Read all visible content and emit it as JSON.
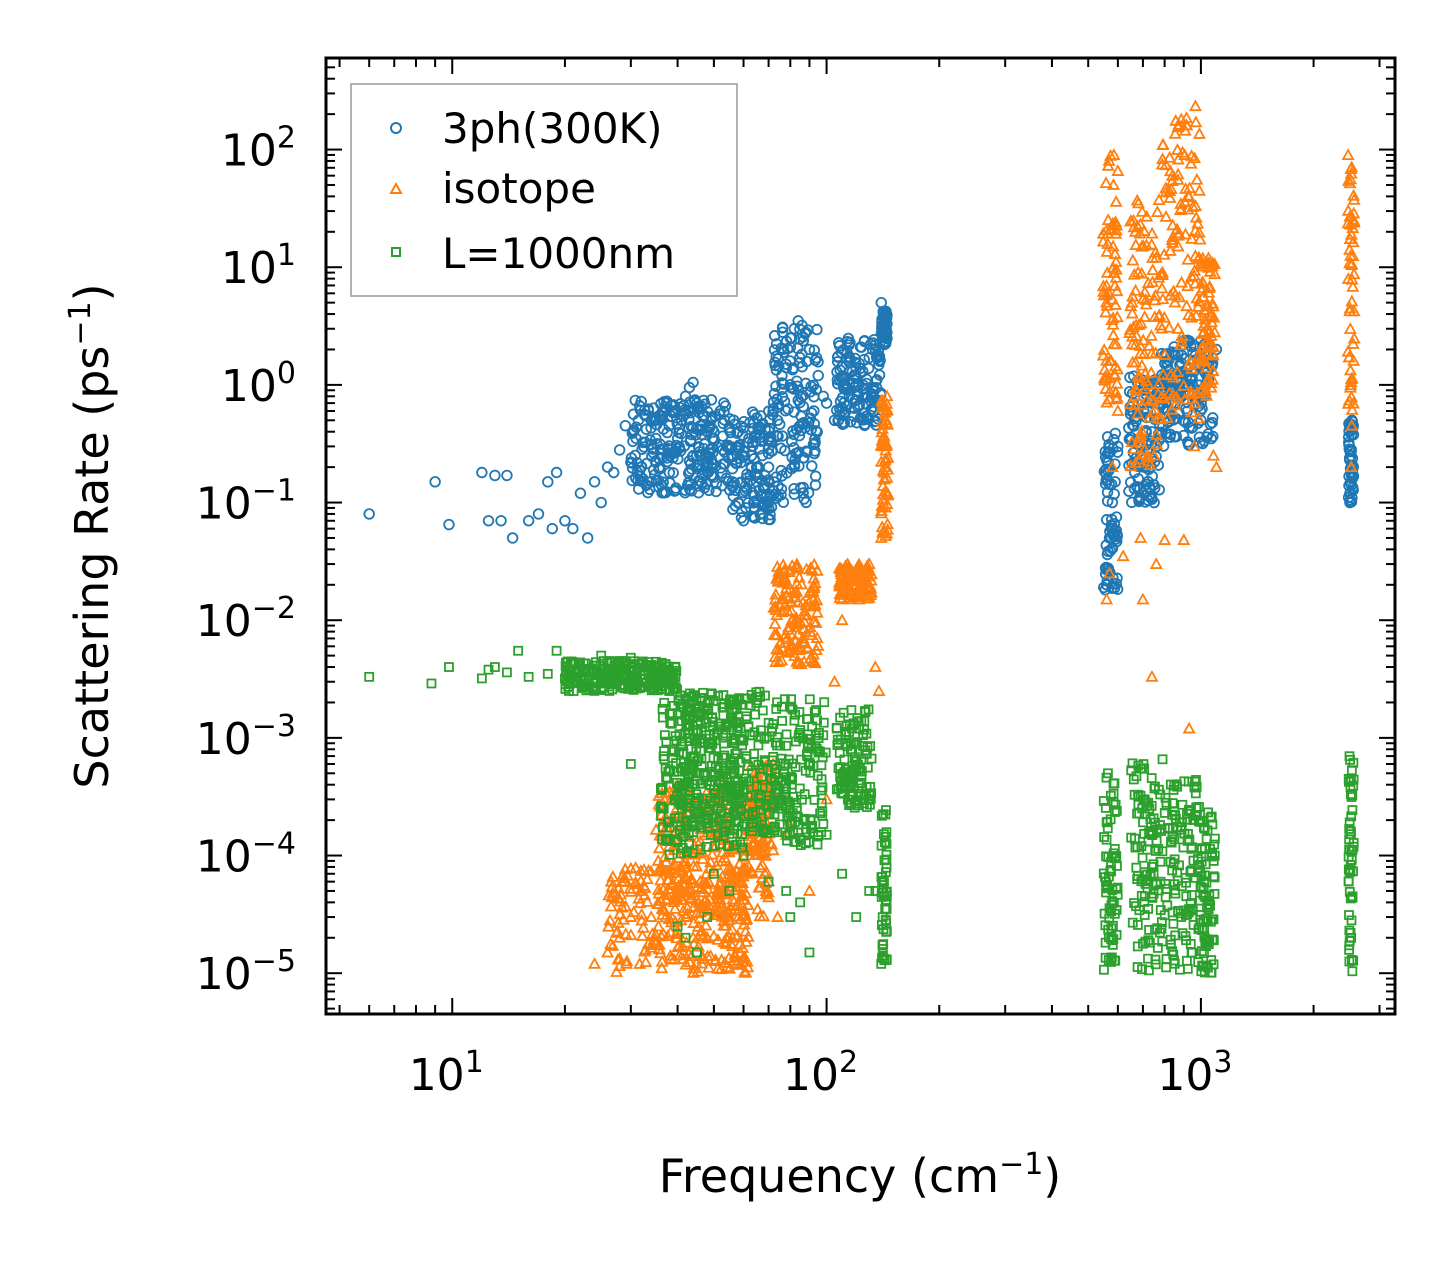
{
  "chart_data": {
    "type": "scatter",
    "xscale": "log",
    "yscale": "log",
    "xlim": [
      4.6,
      3300
    ],
    "ylim": [
      4.5e-06,
      600
    ],
    "xlabel": "Frequency (cm",
    "xlabel_sup": "−1",
    "xlabel_end": ")",
    "ylabel": "Scattering Rate (ps",
    "ylabel_sup": "−1",
    "ylabel_end": ")",
    "xticks": [
      {
        "value": 10,
        "base": "10",
        "exp": "1"
      },
      {
        "value": 100,
        "base": "10",
        "exp": "2"
      },
      {
        "value": 1000,
        "base": "10",
        "exp": "3"
      }
    ],
    "yticks": [
      {
        "value": 1e-05,
        "base": "10",
        "exp": "−5"
      },
      {
        "value": 0.0001,
        "base": "10",
        "exp": "−4"
      },
      {
        "value": 0.001,
        "base": "10",
        "exp": "−3"
      },
      {
        "value": 0.01,
        "base": "10",
        "exp": "−2"
      },
      {
        "value": 0.1,
        "base": "10",
        "exp": "−1"
      },
      {
        "value": 1,
        "base": "10",
        "exp": "0"
      },
      {
        "value": 10,
        "base": "10",
        "exp": "1"
      },
      {
        "value": 100,
        "base": "10",
        "exp": "2"
      }
    ],
    "legend_position": "top-left",
    "series": [
      {
        "name": "3ph(300K)",
        "marker": "circle",
        "color": "#1f77b4",
        "points": [
          [
            6,
            0.08
          ],
          [
            9,
            0.15
          ],
          [
            9.8,
            0.065
          ],
          [
            12,
            0.18
          ],
          [
            12.5,
            0.07
          ],
          [
            13,
            0.17
          ],
          [
            13.5,
            0.07
          ],
          [
            14,
            0.17
          ],
          [
            14.5,
            0.05
          ],
          [
            16,
            0.07
          ],
          [
            17,
            0.08
          ],
          [
            18,
            0.15
          ],
          [
            18.5,
            0.06
          ],
          [
            19,
            0.18
          ],
          [
            20,
            0.07
          ],
          [
            21,
            0.06
          ],
          [
            22,
            0.12
          ],
          [
            23,
            0.05
          ],
          [
            24,
            0.15
          ],
          [
            25,
            0.1
          ],
          [
            26,
            0.2
          ],
          [
            27,
            0.18
          ],
          [
            28,
            0.28
          ],
          [
            29,
            0.45
          ],
          [
            30,
            0.22
          ],
          [
            31,
            0.35
          ],
          [
            32,
            0.2
          ],
          [
            33,
            0.42
          ],
          [
            34,
            0.5
          ],
          [
            35,
            0.35
          ],
          [
            36,
            0.55
          ],
          [
            37,
            0.65
          ],
          [
            38,
            0.45
          ],
          [
            39,
            0.6
          ],
          [
            40,
            0.35
          ],
          [
            41,
            0.5
          ],
          [
            42,
            0.8
          ],
          [
            43,
            0.95
          ],
          [
            44,
            1.05
          ],
          [
            45,
            0.7
          ],
          [
            46,
            0.45
          ],
          [
            47,
            0.55
          ],
          [
            48,
            0.4
          ],
          [
            50,
            0.35
          ],
          [
            52,
            0.6
          ],
          [
            54,
            0.3
          ],
          [
            56,
            0.15
          ],
          [
            58,
            0.1
          ],
          [
            60,
            0.07
          ],
          [
            62,
            0.35
          ],
          [
            65,
            0.15
          ],
          [
            68,
            0.1
          ],
          [
            70,
            0.2
          ],
          [
            72,
            0.6
          ],
          [
            74,
            0.5
          ],
          [
            76,
            1.2
          ],
          [
            78,
            1.5
          ],
          [
            80,
            2.5
          ],
          [
            82,
            3
          ],
          [
            84,
            3.5
          ],
          [
            86,
            3.2
          ],
          [
            88,
            2.8
          ],
          [
            90,
            2
          ],
          [
            95,
            1.2
          ],
          [
            98,
            0.8
          ],
          [
            100,
            0.7
          ],
          [
            105,
            0.5
          ],
          [
            110,
            0.6
          ],
          [
            115,
            0.8
          ],
          [
            120,
            1
          ],
          [
            125,
            1.3
          ],
          [
            130,
            1.7
          ],
          [
            135,
            2
          ],
          [
            140,
            5
          ],
          [
            142,
            3
          ],
          [
            560,
            0.02
          ],
          [
            570,
            0.05
          ],
          [
            580,
            0.1
          ],
          [
            590,
            0.15
          ],
          [
            600,
            0.3
          ],
          [
            650,
            0.6
          ],
          [
            700,
            0.9
          ],
          [
            750,
            0.1
          ],
          [
            760,
            0.3
          ],
          [
            800,
            1.2
          ],
          [
            850,
            1.8
          ],
          [
            900,
            2.2
          ],
          [
            950,
            1
          ],
          [
            1000,
            0.5
          ],
          [
            1050,
            1.5
          ],
          [
            1100,
            2
          ],
          [
            2500,
            0.1
          ],
          [
            2520,
            0.25
          ],
          [
            2540,
            0.45
          ]
        ],
        "clusters": [
          {
            "x0": 30,
            "x1": 56,
            "y0": 0.12,
            "y1": 0.75
          },
          {
            "x0": 56,
            "x1": 72,
            "y0": 0.07,
            "y1": 0.6
          },
          {
            "x0": 72,
            "x1": 95,
            "y0": 0.1,
            "y1": 3.4
          },
          {
            "x0": 106,
            "x1": 140,
            "y0": 0.45,
            "y1": 2.5
          },
          {
            "x0": 140,
            "x1": 145,
            "y0": 2.2,
            "y1": 4.5
          },
          {
            "x0": 550,
            "x1": 600,
            "y0": 0.018,
            "y1": 0.4
          },
          {
            "x0": 640,
            "x1": 780,
            "y0": 0.1,
            "y1": 1.2
          },
          {
            "x0": 780,
            "x1": 1080,
            "y0": 0.3,
            "y1": 2.4
          },
          {
            "x0": 2480,
            "x1": 2560,
            "y0": 0.1,
            "y1": 0.5
          }
        ]
      },
      {
        "name": "isotope",
        "marker": "triangle",
        "color": "#ff7f0e",
        "points": [
          [
            24,
            1.2e-05
          ],
          [
            26,
            1.5e-05
          ],
          [
            28,
            2e-05
          ],
          [
            30,
            3e-05
          ],
          [
            32,
            5e-05
          ],
          [
            34,
            3e-05
          ],
          [
            36,
            8e-05
          ],
          [
            38,
            0.00012
          ],
          [
            40,
            5e-05
          ],
          [
            42,
            3e-05
          ],
          [
            44,
            2e-05
          ],
          [
            46,
            6e-05
          ],
          [
            48,
            2e-05
          ],
          [
            50,
            0.00015
          ],
          [
            52,
            4e-05
          ],
          [
            54,
            9e-05
          ],
          [
            56,
            2e-05
          ],
          [
            58,
            0.00025
          ],
          [
            60,
            0.0001
          ],
          [
            62,
            8e-05
          ],
          [
            66,
            0.00045
          ],
          [
            70,
            6e-05
          ],
          [
            72,
            0.0006
          ],
          [
            74,
            3e-05
          ],
          [
            78,
            0.00015
          ],
          [
            80,
            0.0002
          ],
          [
            90,
            5e-05
          ],
          [
            100,
            0.0003
          ],
          [
            105,
            0.003
          ],
          [
            110,
            0.01
          ],
          [
            120,
            0.02
          ],
          [
            130,
            0.03
          ],
          [
            135,
            0.004
          ],
          [
            138,
            0.0025
          ],
          [
            140,
            0.05
          ],
          [
            142,
            0.3
          ],
          [
            145,
            0.8
          ],
          [
            560,
            0.015
          ],
          [
            570,
            0.025
          ],
          [
            580,
            0.2
          ],
          [
            600,
            0.6
          ],
          [
            620,
            0.035
          ],
          [
            690,
            0.05
          ],
          [
            700,
            0.015
          ],
          [
            740,
            0.0033
          ],
          [
            760,
            0.03
          ],
          [
            800,
            0.048
          ],
          [
            900,
            0.048
          ],
          [
            930,
            0.0012
          ],
          [
            960,
            0.3
          ],
          [
            1080,
            0.25
          ],
          [
            1100,
            0.2
          ],
          [
            2520,
            0.2
          ],
          [
            2530,
            0.45
          ]
        ],
        "clusters": [
          {
            "x0": 26,
            "x1": 62,
            "y0": 1e-05,
            "y1": 8e-05
          },
          {
            "x0": 35,
            "x1": 70,
            "y0": 3e-05,
            "y1": 0.0004
          },
          {
            "x0": 62,
            "x1": 72,
            "y0": 0.0001,
            "y1": 0.0006
          },
          {
            "x0": 72,
            "x1": 95,
            "y0": 0.004,
            "y1": 0.03
          },
          {
            "x0": 108,
            "x1": 132,
            "y0": 0.015,
            "y1": 0.03
          },
          {
            "x0": 140,
            "x1": 146,
            "y0": 0.05,
            "y1": 0.8
          },
          {
            "x0": 548,
            "x1": 600,
            "y0": 0.6,
            "y1": 90
          },
          {
            "x0": 645,
            "x1": 780,
            "y0": 0.2,
            "y1": 40
          },
          {
            "x0": 780,
            "x1": 1000,
            "y0": 0.5,
            "y1": 250
          },
          {
            "x0": 1000,
            "x1": 1090,
            "y0": 0.8,
            "y1": 12
          },
          {
            "x0": 2470,
            "x1": 2570,
            "y0": 0.6,
            "y1": 90
          }
        ]
      },
      {
        "name": "L=1000nm",
        "marker": "square",
        "color": "#2ca02c",
        "points": [
          [
            6,
            0.0033
          ],
          [
            8.8,
            0.0029
          ],
          [
            9.8,
            0.004
          ],
          [
            12,
            0.0032
          ],
          [
            12.5,
            0.0038
          ],
          [
            13,
            0.004
          ],
          [
            14,
            0.0036
          ],
          [
            15,
            0.0055
          ],
          [
            16,
            0.0033
          ],
          [
            18,
            0.0035
          ],
          [
            19,
            0.0055
          ],
          [
            20,
            0.0032
          ],
          [
            22,
            0.0031
          ],
          [
            25,
            0.005
          ],
          [
            28,
            0.0045
          ],
          [
            30,
            0.0048
          ],
          [
            30,
            0.0006
          ],
          [
            32,
            0.0042
          ],
          [
            35,
            0.004
          ],
          [
            38,
            0.0025
          ],
          [
            40,
            2.5e-05
          ],
          [
            42,
            2e-05
          ],
          [
            45,
            1.5e-05
          ],
          [
            48,
            3e-05
          ],
          [
            50,
            7e-05
          ],
          [
            55,
            5e-05
          ],
          [
            60,
            0.0001
          ],
          [
            70,
            6e-05
          ],
          [
            78,
            5e-05
          ],
          [
            80,
            3e-05
          ],
          [
            85,
            4e-05
          ],
          [
            90,
            1.5e-05
          ],
          [
            100,
            0.00015
          ],
          [
            110,
            7e-05
          ],
          [
            120,
            3e-05
          ],
          [
            130,
            5e-05
          ],
          [
            135,
            5e-05
          ],
          [
            140,
            1.2e-05
          ]
        ],
        "clusters": [
          {
            "x0": 20,
            "x1": 40,
            "y0": 0.0025,
            "y1": 0.0045
          },
          {
            "x0": 36,
            "x1": 60,
            "y0": 0.0001,
            "y1": 0.002
          },
          {
            "x0": 40,
            "x1": 72,
            "y0": 0.00015,
            "y1": 0.0025
          },
          {
            "x0": 72,
            "x1": 100,
            "y0": 0.00012,
            "y1": 0.0022
          },
          {
            "x0": 106,
            "x1": 132,
            "y0": 0.00025,
            "y1": 0.0018
          },
          {
            "x0": 140,
            "x1": 145,
            "y0": 1.2e-05,
            "y1": 0.00025
          },
          {
            "x0": 550,
            "x1": 600,
            "y0": 1e-05,
            "y1": 0.0005
          },
          {
            "x0": 650,
            "x1": 790,
            "y0": 1e-05,
            "y1": 0.0007
          },
          {
            "x0": 800,
            "x1": 1000,
            "y0": 1e-05,
            "y1": 0.00045
          },
          {
            "x0": 1000,
            "x1": 1090,
            "y0": 1e-05,
            "y1": 0.00025
          },
          {
            "x0": 2480,
            "x1": 2560,
            "y0": 1e-05,
            "y1": 0.0007
          }
        ]
      }
    ]
  }
}
